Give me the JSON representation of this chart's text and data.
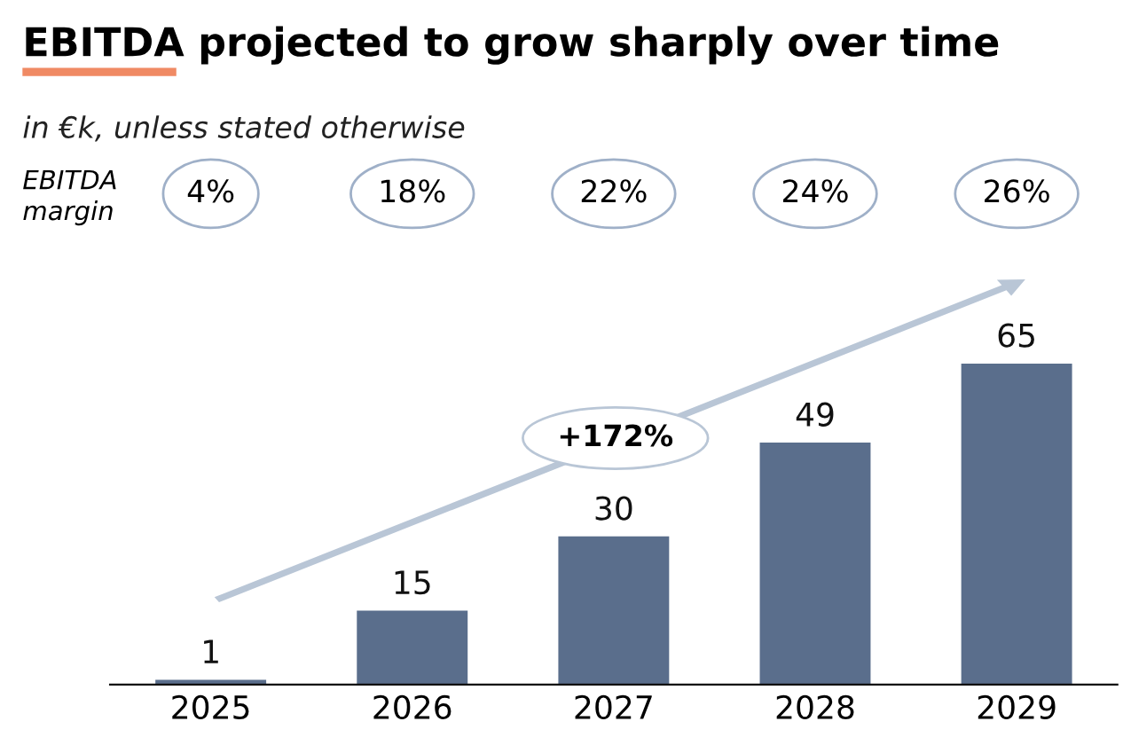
{
  "chart_data": {
    "type": "bar",
    "title": "EBITDA projected to grow sharply over time",
    "subtitle": "in €k, unless stated otherwise",
    "categories": [
      "2025",
      "2026",
      "2027",
      "2028",
      "2029"
    ],
    "values": [
      1,
      15,
      30,
      49,
      65
    ],
    "color": "#5a6e8c",
    "data_labels": true,
    "tick_labels": "x",
    "grid": false,
    "legend": false,
    "annotations": [
      "EBITDA\nmargin",
      "+172%",
      "4%",
      "18%",
      "22%",
      "24%",
      "26%"
    ]
  }
}
